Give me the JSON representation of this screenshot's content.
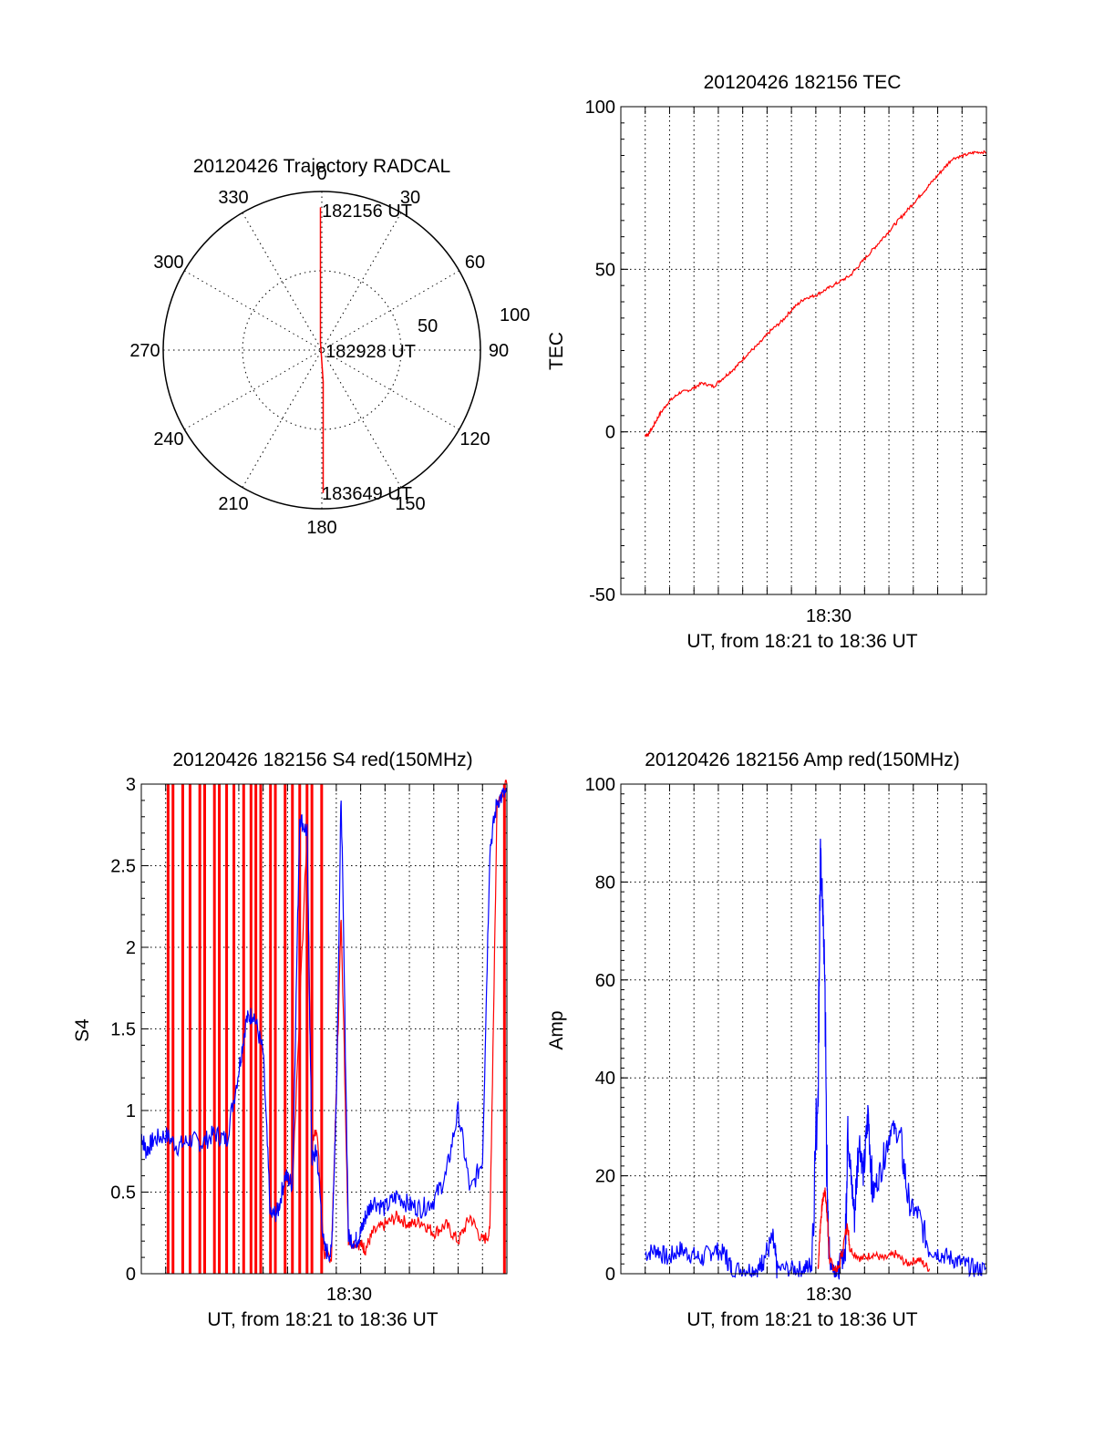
{
  "colors": {
    "red": "#ff0000",
    "blue": "#0000ff",
    "axis": "#000000",
    "grid": "#000000"
  },
  "chart_data": [
    {
      "type": "polar",
      "title": "20120426 Trajectory RADCAL",
      "angle_labels": [
        "0",
        "30",
        "60",
        "90",
        "120",
        "150",
        "180",
        "210",
        "240",
        "270",
        "300",
        "330"
      ],
      "radius_labels": [
        "50",
        "100"
      ],
      "rlim": [
        0,
        100
      ],
      "annotations": [
        "182156 UT",
        "182928 UT",
        "183649 UT"
      ],
      "trajectory": {
        "color": "red",
        "points": [
          {
            "az": 0,
            "zenith": 90
          },
          {
            "az": 0,
            "zenith": 60
          },
          {
            "az": 0,
            "zenith": 30
          },
          {
            "az": 0,
            "zenith": 5
          },
          {
            "az": 180,
            "zenith": 20
          },
          {
            "az": 180,
            "zenith": 50
          },
          {
            "az": 180,
            "zenith": 75
          },
          {
            "az": 180,
            "zenith": 90
          }
        ]
      }
    },
    {
      "type": "line",
      "title": "20120426 182156 TEC",
      "xlabel": "UT, from 18:21 to 18:36 UT",
      "ylabel": "TEC",
      "x_tick_labels": [
        "18:30"
      ],
      "y_tick_labels": [
        "-50",
        "0",
        "50",
        "100"
      ],
      "ylim": [
        -50,
        100
      ],
      "series": [
        {
          "color": "red",
          "x": [
            0.0,
            0.1,
            0.3,
            0.6,
            1.0,
            1.5,
            2.0,
            2.5,
            3.0,
            3.5,
            4.0,
            4.5,
            5.0,
            5.5,
            6.0,
            6.5,
            7.0,
            7.5,
            8.0,
            8.5,
            9.0,
            9.5,
            10.0,
            10.5,
            11.0,
            11.5,
            12.0,
            12.5,
            13.0,
            13.5,
            14.0,
            14.5,
            15.0
          ],
          "values": [
            -1,
            -1,
            1,
            5,
            9,
            12,
            13,
            15,
            14,
            17,
            20,
            24,
            27,
            31,
            34,
            38,
            41,
            42,
            44,
            46,
            48,
            52,
            56,
            60,
            64,
            68,
            72,
            76,
            80,
            84,
            85,
            86,
            86
          ]
        }
      ]
    },
    {
      "type": "line",
      "title": "20120426 182156 S4 red(150MHz)",
      "xlabel": "UT, from 18:21 to 18:36 UT",
      "ylabel": "S4",
      "x_tick_labels": [
        "18:30"
      ],
      "y_tick_labels": [
        "0",
        "0.5",
        "1",
        "1.5",
        "2",
        "2.5",
        "3"
      ],
      "ylim": [
        0,
        3
      ],
      "series": [
        {
          "color": "blue",
          "x": [
            0.0,
            0.2,
            0.5,
            1.0,
            1.5,
            2.0,
            2.5,
            3.0,
            3.5,
            4.0,
            4.3,
            4.6,
            5.0,
            5.3,
            5.6,
            5.9,
            6.2,
            6.5,
            6.8,
            7.0,
            7.2,
            7.5,
            7.8,
            8.0,
            8.2,
            8.5,
            8.8,
            9.0,
            9.2,
            9.5,
            10.0,
            10.5,
            11.0,
            11.5,
            12.0,
            12.5,
            13.0,
            13.5,
            14.0,
            14.3,
            14.6,
            15.0
          ],
          "values": [
            0.85,
            0.75,
            0.82,
            0.85,
            0.78,
            0.82,
            0.8,
            0.86,
            0.82,
            1.25,
            1.55,
            1.6,
            1.35,
            0.35,
            0.38,
            0.6,
            0.55,
            2.8,
            2.7,
            0.7,
            0.75,
            0.15,
            0.12,
            1.05,
            2.95,
            0.22,
            0.2,
            0.25,
            0.35,
            0.45,
            0.4,
            0.48,
            0.42,
            0.4,
            0.45,
            0.6,
            1.0,
            0.5,
            0.7,
            2.6,
            2.9,
            2.95
          ]
        },
        {
          "color": "red",
          "x": [
            5.9,
            6.2,
            6.8,
            7.0,
            7.2,
            7.5,
            7.8,
            8.0,
            8.2,
            8.5,
            9.0,
            9.2,
            9.5,
            10.0,
            10.5,
            11.0,
            11.5,
            12.0,
            12.5,
            13.0,
            13.5,
            14.0,
            14.3,
            14.6,
            15.0
          ],
          "values": [
            0.6,
            0.55,
            2.7,
            0.8,
            0.9,
            0.12,
            0.1,
            1.1,
            2.2,
            0.2,
            0.18,
            0.15,
            0.25,
            0.3,
            0.35,
            0.3,
            0.32,
            0.25,
            0.3,
            0.2,
            0.35,
            0.2,
            0.25,
            2.9,
            3.0
          ]
        }
      ]
    },
    {
      "type": "line",
      "title": "20120426 182156 Amp red(150MHz)",
      "xlabel": "UT, from 18:21 to 18:36 UT",
      "ylabel": "Amp",
      "x_tick_labels": [
        "18:30"
      ],
      "y_tick_labels": [
        "0",
        "20",
        "40",
        "60",
        "80",
        "100"
      ],
      "ylim": [
        0,
        100
      ],
      "series": [
        {
          "color": "blue",
          "x": [
            0.0,
            0.5,
            1.0,
            1.5,
            2.0,
            2.5,
            3.0,
            3.5,
            3.8,
            4.5,
            5.0,
            5.2,
            5.6,
            5.8,
            6.5,
            7.0,
            7.3,
            7.6,
            7.7,
            7.8,
            7.9,
            8.0,
            8.1,
            8.3,
            8.5,
            8.8,
            8.9,
            9.0,
            9.2,
            9.4,
            9.6,
            9.8,
            10.0,
            10.4,
            10.8,
            11.2,
            11.6,
            12.0,
            12.5,
            13.0,
            13.5,
            14.0,
            14.5,
            15.0
          ],
          "values": [
            4,
            5,
            3,
            5,
            4,
            3,
            5,
            4,
            1,
            1,
            1,
            3,
            7,
            1,
            1,
            1,
            2,
            40,
            86,
            75,
            60,
            15,
            3,
            1,
            1,
            5,
            30,
            22,
            12,
            28,
            20,
            33,
            16,
            22,
            30,
            28,
            14,
            12,
            5,
            4,
            3,
            2,
            1,
            1
          ]
        },
        {
          "color": "red",
          "x": [
            7.6,
            7.7,
            7.8,
            7.9,
            8.0,
            8.1,
            8.3,
            8.5,
            8.9,
            9.0,
            9.5,
            10.0,
            10.5,
            11.0,
            11.5,
            12.0,
            12.5
          ],
          "values": [
            1,
            10,
            15,
            17,
            12,
            3,
            1,
            1,
            10,
            5,
            3,
            4,
            3,
            4,
            2,
            3,
            1
          ]
        }
      ]
    }
  ]
}
